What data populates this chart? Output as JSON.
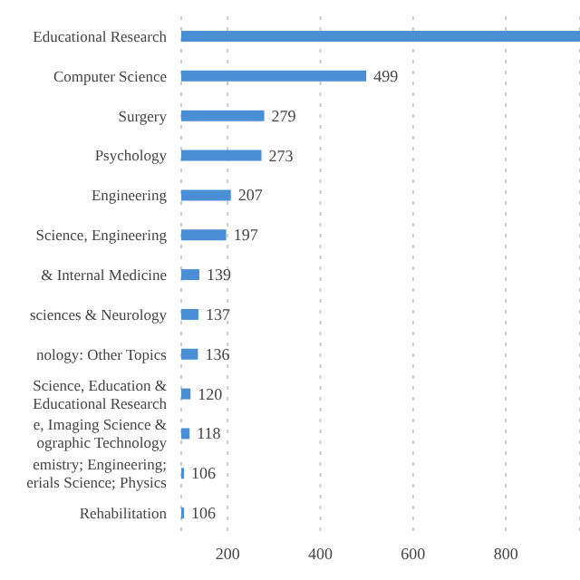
{
  "chart_data": {
    "type": "bar",
    "orientation": "horizontal",
    "categories": [
      "Educational Research",
      "Computer Science",
      "Surgery",
      "Psychology",
      "Engineering",
      "Science, Engineering",
      "& Internal Medicine",
      "sciences & Neurology",
      "nology: Other Topics",
      "Science, Education &\nEducational Research",
      "e, Imaging Science &\nographic Technology",
      "emistry; Engineering;\nerials Science; Physics",
      "Rehabilitation"
    ],
    "values": [
      960,
      499,
      279,
      273,
      207,
      197,
      139,
      137,
      136,
      120,
      118,
      106,
      106
    ],
    "value_labels": [
      null,
      "499",
      "279",
      "273",
      "207",
      "197",
      "139",
      "137",
      "136",
      "120",
      "118",
      "106",
      "106"
    ],
    "color": "#4a8fd6",
    "xlim": [
      100,
      960
    ],
    "xticks": [
      200,
      400,
      600,
      800
    ],
    "grid": "x"
  }
}
